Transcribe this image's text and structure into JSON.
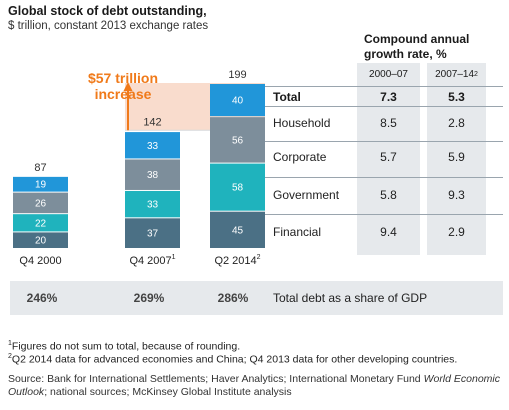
{
  "header": {
    "title": "Global stock of debt outstanding,",
    "subtitle": "$ trillion, constant 2013 exchange rates"
  },
  "cagr": {
    "title_line1": "Compound annual",
    "title_line2": "growth rate, %",
    "col1_label": "2000–07",
    "col2_label": "2007–14",
    "col2_sup": "2"
  },
  "annotation": {
    "line1": "$57 trillion",
    "line2": "increase"
  },
  "rows": [
    {
      "label": "Total",
      "cagr_2000_07": "7.3",
      "cagr_2007_14": "5.3"
    },
    {
      "label": "Household",
      "cagr_2000_07": "8.5",
      "cagr_2007_14": "2.8"
    },
    {
      "label": "Corporate",
      "cagr_2000_07": "5.7",
      "cagr_2007_14": "5.9"
    },
    {
      "label": "Government",
      "cagr_2000_07": "5.8",
      "cagr_2007_14": "9.3"
    },
    {
      "label": "Financial",
      "cagr_2000_07": "9.4",
      "cagr_2007_14": "2.9"
    }
  ],
  "ratio": {
    "label": "Total debt as a share of GDP",
    "values": [
      "246%",
      "269%",
      "286%"
    ]
  },
  "footnotes": {
    "note1_mark": "1",
    "note1": "Figures do not sum to total, because of rounding.",
    "note2_mark": "2",
    "note2": "Q2 2014 data for advanced economies and China; Q4 2013 data for other developing countries."
  },
  "source": {
    "prefix": "Source: Bank for International Settlements; Haver Analytics; International Monetary Fund ",
    "italic": "World Economic Outlook",
    "suffix": "; national sources; McKinsey Global Institute analysis"
  },
  "colors": {
    "household": "#2196d9",
    "corporate": "#7d8e9b",
    "government": "#1fb3bd",
    "financial": "#4b7085",
    "highlight": "#f9dccd",
    "arrow": "#f07a1a"
  },
  "chart_data": {
    "type": "bar",
    "stacked": true,
    "categories": [
      "Q4 2000",
      "Q4 2007",
      "Q2 2014"
    ],
    "category_sups": [
      "",
      "1",
      "2"
    ],
    "totals": [
      87,
      142,
      199
    ],
    "series": [
      {
        "name": "Financial",
        "values": [
          20,
          37,
          45
        ]
      },
      {
        "name": "Government",
        "values": [
          22,
          33,
          58
        ]
      },
      {
        "name": "Corporate",
        "values": [
          26,
          38,
          56
        ]
      },
      {
        "name": "Household",
        "values": [
          19,
          33,
          40
        ]
      }
    ],
    "ylim": [
      0,
      199
    ]
  }
}
